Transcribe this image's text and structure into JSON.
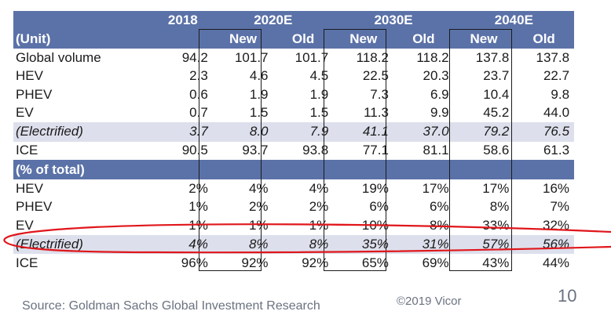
{
  "table": {
    "header_row1": {
      "first_col": "",
      "year_2018": "2018",
      "groups": [
        "2020E",
        "2030E",
        "2040E"
      ]
    },
    "header_row2": {
      "first_col": "(Unit)",
      "col_2018": "",
      "sub": [
        "New",
        "Old",
        "New",
        "Old",
        "New",
        "Old"
      ]
    },
    "unit_rows": [
      {
        "label": "Global volume",
        "values": [
          "94.2",
          "101.7",
          "101.7",
          "118.2",
          "118.2",
          "137.8",
          "137.8"
        ]
      },
      {
        "label": "HEV",
        "values": [
          "2.3",
          "4.6",
          "4.5",
          "22.5",
          "20.3",
          "23.7",
          "22.7"
        ]
      },
      {
        "label": "PHEV",
        "values": [
          "0.6",
          "1.9",
          "1.9",
          "7.3",
          "6.9",
          "10.4",
          "9.8"
        ]
      },
      {
        "label": "EV",
        "values": [
          "0.7",
          "1.5",
          "1.5",
          "11.3",
          "9.9",
          "45.2",
          "44.0"
        ]
      },
      {
        "label": "(Electrified)",
        "values": [
          "3.7",
          "8.0",
          "7.9",
          "41.1",
          "37.0",
          "79.2",
          "76.5"
        ]
      },
      {
        "label": "ICE",
        "values": [
          "90.5",
          "93.7",
          "93.8",
          "77.1",
          "81.1",
          "58.6",
          "61.3"
        ]
      }
    ],
    "section_label": "(% of total)",
    "pct_rows": [
      {
        "label": "HEV",
        "values": [
          "2%",
          "4%",
          "4%",
          "19%",
          "17%",
          "17%",
          "16%"
        ]
      },
      {
        "label": "PHEV",
        "values": [
          "1%",
          "2%",
          "2%",
          "6%",
          "6%",
          "8%",
          "7%"
        ]
      },
      {
        "label": "EV",
        "values": [
          "1%",
          "1%",
          "1%",
          "10%",
          "8%",
          "33%",
          "32%"
        ]
      },
      {
        "label": "(Electrified)",
        "values": [
          "4%",
          "8%",
          "8%",
          "35%",
          "31%",
          "57%",
          "56%"
        ]
      },
      {
        "label": "ICE",
        "values": [
          "96%",
          "92%",
          "92%",
          "65%",
          "69%",
          "43%",
          "44%"
        ]
      }
    ]
  },
  "footer": {
    "source": "Source: Goldman Sachs Global Investment Research",
    "copyright": "©2019 Vicor",
    "page_number": "10"
  },
  "colors": {
    "header_bg": "#5b72a8",
    "shade_bg": "#dde0ec",
    "annotation": "#e0161b"
  }
}
